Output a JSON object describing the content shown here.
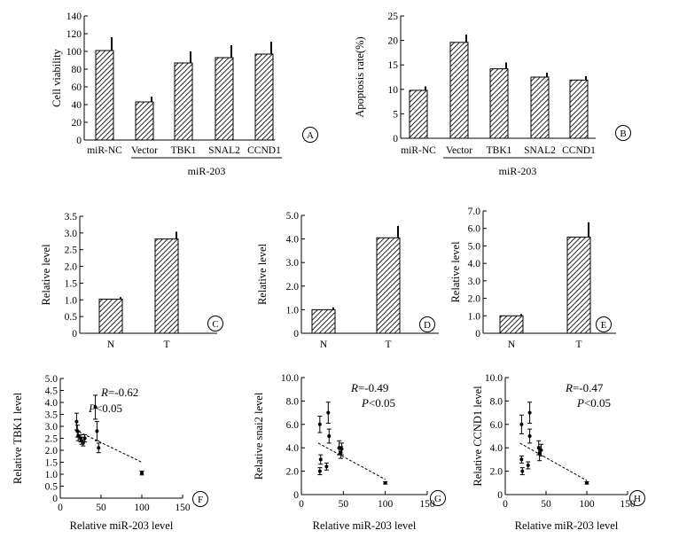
{
  "chart_data": [
    {
      "panel_label": "A",
      "type": "bar",
      "ylabel": "Cell viability",
      "ylim": [
        0,
        140
      ],
      "yticks": [
        "0",
        "20",
        "40",
        "60",
        "80",
        "100",
        "120",
        "140"
      ],
      "ytick_values": [
        0,
        20,
        40,
        60,
        80,
        100,
        120,
        140
      ],
      "categories": [
        "miR-NC",
        "Vector",
        "TBK1",
        "SNAL2",
        "CCND1"
      ],
      "values": [
        101,
        43,
        87,
        93,
        97
      ],
      "errors": [
        15,
        6,
        13,
        14,
        14
      ],
      "group_label": "miR-203"
    },
    {
      "panel_label": "B",
      "type": "bar",
      "ylabel": "Apoptosis rate(%)",
      "ylim": [
        0,
        25
      ],
      "yticks": [
        "0",
        "5",
        "10",
        "15",
        "20",
        "25"
      ],
      "ytick_values": [
        0,
        5,
        10,
        15,
        20,
        25
      ],
      "categories": [
        "miR-NC",
        "Vector",
        "TBK1",
        "SNAL2",
        "CCND1"
      ],
      "values": [
        9.8,
        19.6,
        14.2,
        12.5,
        11.9
      ],
      "errors": [
        0.8,
        1.6,
        1.3,
        0.9,
        0.8
      ],
      "group_label": "miR-203"
    },
    {
      "panel_label": "C",
      "type": "bar",
      "ylabel": "Relative level",
      "ylim": [
        0,
        3.5
      ],
      "yticks": [
        "0",
        "0.5",
        "1.0",
        "1.5",
        "2.0",
        "2.5",
        "3.0",
        "3.5"
      ],
      "ytick_values": [
        0,
        0.5,
        1,
        1.5,
        2,
        2.5,
        3,
        3.5
      ],
      "categories": [
        "N",
        "T"
      ],
      "values": [
        1.02,
        2.82
      ],
      "errors": [
        0.06,
        0.22
      ]
    },
    {
      "panel_label": "D",
      "type": "bar",
      "ylabel": "Relative level",
      "ylim": [
        0,
        5
      ],
      "yticks": [
        "0",
        "1.0",
        "2.0",
        "3.0",
        "4.0",
        "5.0"
      ],
      "ytick_values": [
        0,
        1,
        2,
        3,
        4,
        5
      ],
      "categories": [
        "N",
        "T"
      ],
      "values": [
        1.0,
        4.05
      ],
      "errors": [
        0.1,
        0.5
      ]
    },
    {
      "panel_label": "E",
      "type": "bar",
      "ylabel": "Relative level",
      "ylim": [
        0,
        7
      ],
      "yticks": [
        "0",
        "1.0",
        "2.0",
        "3.0",
        "4.0",
        "5.0",
        "6.0",
        "7.0"
      ],
      "ytick_values": [
        0,
        1,
        2,
        3,
        4,
        5,
        6,
        7
      ],
      "categories": [
        "N",
        "T"
      ],
      "values": [
        1.0,
        5.5
      ],
      "errors": [
        0.1,
        0.85
      ]
    },
    {
      "panel_label": "F",
      "type": "scatter",
      "xlabel": "Relative miR-203 level",
      "ylabel": "Relative TBK1 level",
      "xlim": [
        0,
        150
      ],
      "ylim": [
        0,
        5
      ],
      "xticks": [
        "0",
        "50",
        "100",
        "150"
      ],
      "xtick_values": [
        0,
        50,
        100,
        150
      ],
      "yticks": [
        "0",
        "0.5",
        "1.0",
        "1.5",
        "2.0",
        "2.5",
        "3.0",
        "3.5",
        "4.0",
        "4.5",
        "5.0"
      ],
      "ytick_values": [
        0,
        0.5,
        1,
        1.5,
        2,
        2.5,
        3,
        3.5,
        4,
        4.5,
        5
      ],
      "points": [
        {
          "x": 20,
          "y": 3.2,
          "err": 0.35
        },
        {
          "x": 21,
          "y": 2.8,
          "err": 0.25
        },
        {
          "x": 22,
          "y": 2.6,
          "err": 0.2
        },
        {
          "x": 25,
          "y": 2.5,
          "err": 0.15
        },
        {
          "x": 26,
          "y": 2.4,
          "err": 0.15
        },
        {
          "x": 28,
          "y": 2.3,
          "err": 0.12
        },
        {
          "x": 30,
          "y": 2.5,
          "err": 0.15
        },
        {
          "x": 43,
          "y": 3.8,
          "err": 0.5
        },
        {
          "x": 45,
          "y": 2.8,
          "err": 0.4
        },
        {
          "x": 47,
          "y": 2.1,
          "err": 0.2
        },
        {
          "x": 100,
          "y": 1.05,
          "err": 0.08
        }
      ],
      "fit_line": [
        {
          "x": 18,
          "y": 2.85
        },
        {
          "x": 100,
          "y": 1.5
        }
      ],
      "annotation_r": "=-0.62",
      "annotation_p": "<0.05"
    },
    {
      "panel_label": "G",
      "type": "scatter",
      "xlabel": "Relative miR-203 level",
      "ylabel": "Relative snai2 level",
      "xlim": [
        0,
        150
      ],
      "ylim": [
        0,
        10
      ],
      "xticks": [
        "0",
        "50",
        "100",
        "150"
      ],
      "xtick_values": [
        0,
        50,
        100,
        150
      ],
      "yticks": [
        "0",
        "2.0",
        "4.0",
        "6.0",
        "8.0",
        "10.0"
      ],
      "ytick_values": [
        0,
        2,
        4,
        6,
        8,
        10
      ],
      "points": [
        {
          "x": 22,
          "y": 6.0,
          "err": 0.7
        },
        {
          "x": 22,
          "y": 2.0,
          "err": 0.3
        },
        {
          "x": 23,
          "y": 3.0,
          "err": 0.4
        },
        {
          "x": 30,
          "y": 2.4,
          "err": 0.3
        },
        {
          "x": 32,
          "y": 7.0,
          "err": 0.9
        },
        {
          "x": 33,
          "y": 5.0,
          "err": 0.6
        },
        {
          "x": 45,
          "y": 4.0,
          "err": 0.6
        },
        {
          "x": 47,
          "y": 3.6,
          "err": 0.5
        },
        {
          "x": 48,
          "y": 3.9,
          "err": 0.5
        },
        {
          "x": 100,
          "y": 1.0,
          "err": 0.1
        }
      ],
      "fit_line": [
        {
          "x": 20,
          "y": 4.4
        },
        {
          "x": 100,
          "y": 1.3
        }
      ],
      "annotation_r": "=-0.49",
      "annotation_p": "<0.05"
    },
    {
      "panel_label": "H",
      "type": "scatter",
      "xlabel": "Relative miR-203 level",
      "ylabel": "Relative CCND1 level",
      "xlim": [
        0,
        150
      ],
      "ylim": [
        0,
        10
      ],
      "xticks": [
        "0",
        "50",
        "100",
        "150"
      ],
      "xtick_values": [
        0,
        50,
        100,
        150
      ],
      "yticks": [
        "0",
        "2.0",
        "4.0",
        "6.0",
        "8.0",
        "10.0"
      ],
      "ytick_values": [
        0,
        2,
        4,
        6,
        8,
        10
      ],
      "points": [
        {
          "x": 20,
          "y": 6.0,
          "err": 0.8
        },
        {
          "x": 20,
          "y": 3.0,
          "err": 0.3
        },
        {
          "x": 21,
          "y": 2.0,
          "err": 0.3
        },
        {
          "x": 28,
          "y": 2.5,
          "err": 0.3
        },
        {
          "x": 30,
          "y": 7.0,
          "err": 0.9
        },
        {
          "x": 30,
          "y": 5.0,
          "err": 0.6
        },
        {
          "x": 41,
          "y": 4.0,
          "err": 0.6
        },
        {
          "x": 42,
          "y": 3.5,
          "err": 0.6
        },
        {
          "x": 44,
          "y": 3.8,
          "err": 0.5
        },
        {
          "x": 100,
          "y": 1.0,
          "err": 0.1
        }
      ],
      "fit_line": [
        {
          "x": 18,
          "y": 4.4
        },
        {
          "x": 100,
          "y": 1.2
        }
      ],
      "annotation_r": "=-0.47",
      "annotation_p": "<0.05"
    }
  ],
  "annotation_symbols": {
    "r": "R",
    "p": "P"
  }
}
